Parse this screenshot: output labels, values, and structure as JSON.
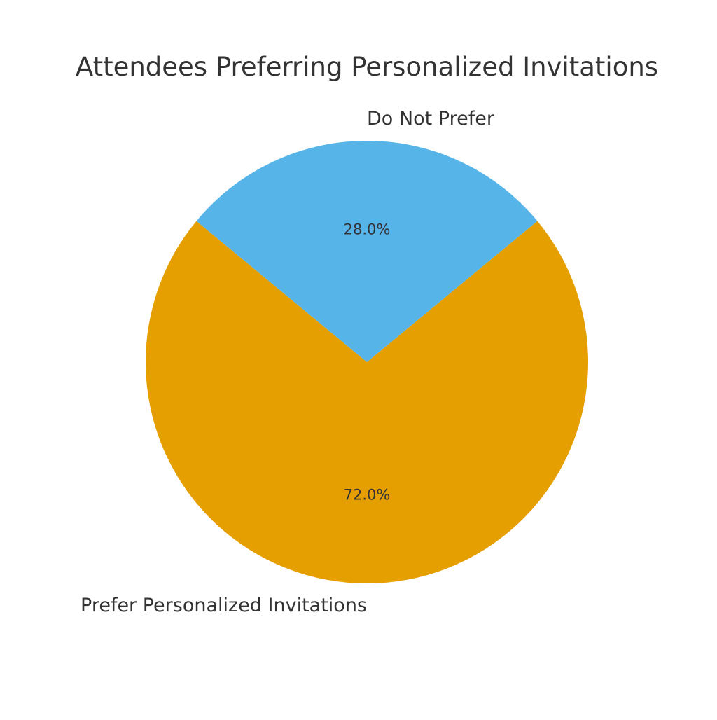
{
  "chart_data": {
    "type": "pie",
    "title": "Attendees Preferring Personalized Invitations",
    "categories": [
      "Prefer Personalized Invitations",
      "Do Not Prefer"
    ],
    "values": [
      72.0,
      28.0
    ],
    "percent_labels": [
      "72.0%",
      "28.0%"
    ],
    "colors": [
      "#E69F00",
      "#56B4E9"
    ],
    "legend": "none"
  }
}
